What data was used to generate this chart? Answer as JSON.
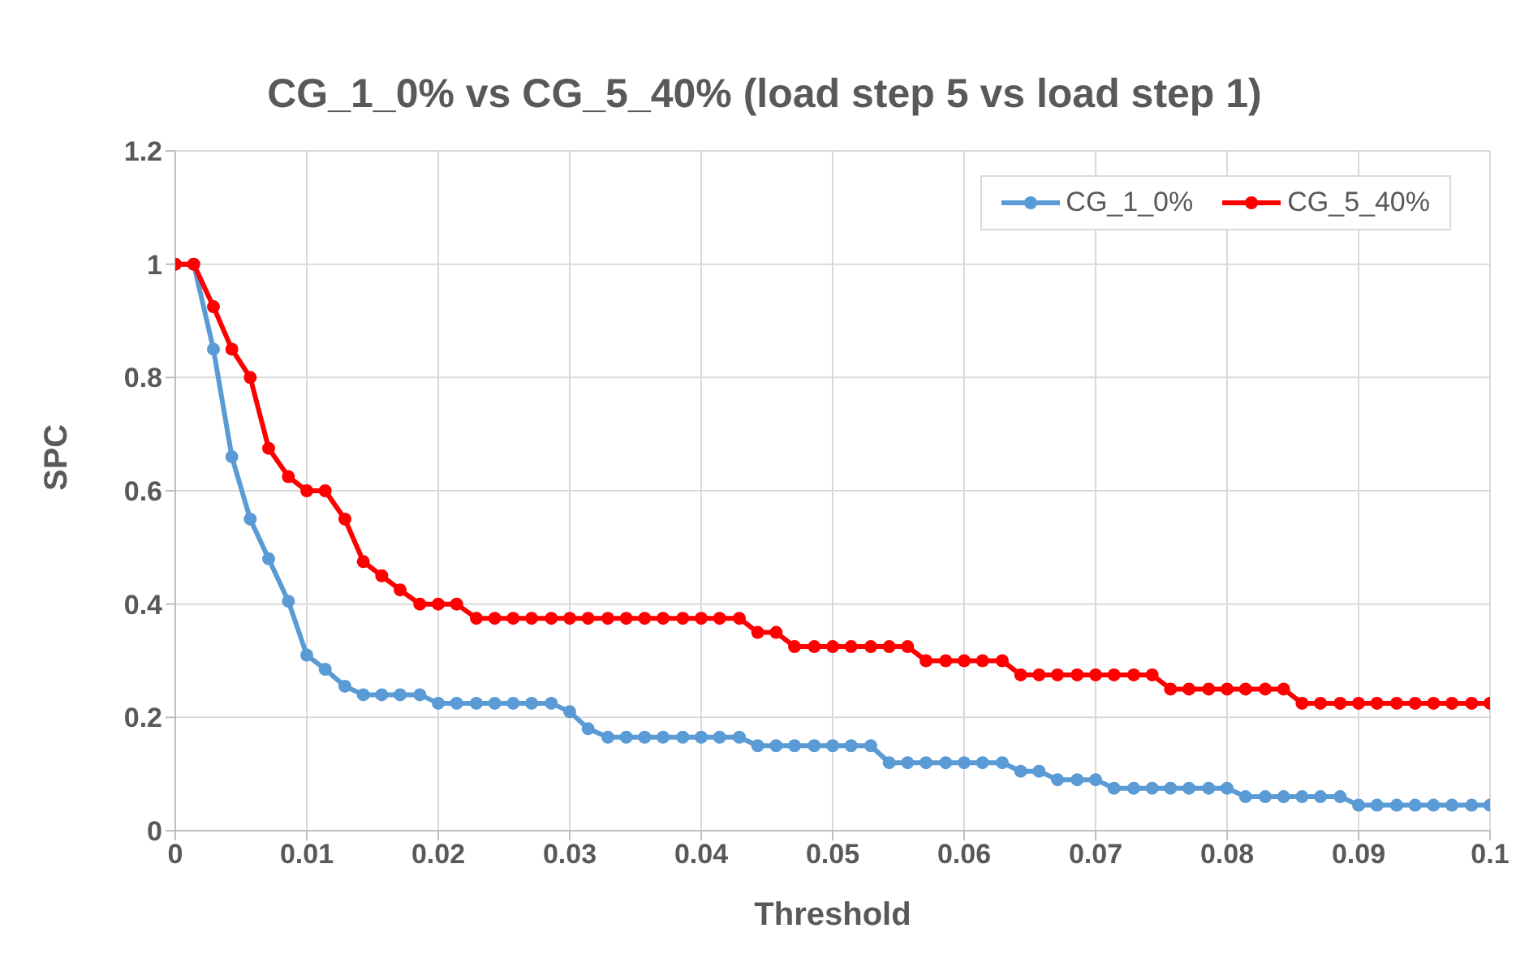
{
  "chart_data": {
    "type": "line",
    "title": "CG_1_0% vs CG_5_40% (load step 5 vs load step 1)",
    "xlabel": "Threshold",
    "ylabel": "SPC",
    "x": [
      0,
      0.0014,
      0.0029,
      0.0043,
      0.0057,
      0.0071,
      0.0086,
      0.01,
      0.0114,
      0.0129,
      0.0143,
      0.0157,
      0.0171,
      0.0186,
      0.02,
      0.0214,
      0.0229,
      0.0243,
      0.0257,
      0.0271,
      0.0286,
      0.03,
      0.0314,
      0.0329,
      0.0343,
      0.0357,
      0.0371,
      0.0386,
      0.04,
      0.0414,
      0.0429,
      0.0443,
      0.0457,
      0.0471,
      0.0486,
      0.05,
      0.0514,
      0.0529,
      0.0543,
      0.0557,
      0.0571,
      0.0586,
      0.06,
      0.0614,
      0.0629,
      0.0643,
      0.0657,
      0.0671,
      0.0686,
      0.07,
      0.0714,
      0.0729,
      0.0743,
      0.0757,
      0.0771,
      0.0786,
      0.08,
      0.0814,
      0.0829,
      0.0843,
      0.0857,
      0.0871,
      0.0886,
      0.09,
      0.0914,
      0.0929,
      0.0943,
      0.0957,
      0.0971,
      0.0986,
      0.1
    ],
    "series": [
      {
        "name": "CG_1_0%",
        "color": "#5b9bd5",
        "values": [
          1,
          1,
          0.85,
          0.66,
          0.55,
          0.48,
          0.405,
          0.31,
          0.285,
          0.255,
          0.24,
          0.24,
          0.24,
          0.24,
          0.225,
          0.225,
          0.225,
          0.225,
          0.225,
          0.225,
          0.225,
          0.21,
          0.18,
          0.165,
          0.165,
          0.165,
          0.165,
          0.165,
          0.165,
          0.165,
          0.165,
          0.15,
          0.15,
          0.15,
          0.15,
          0.15,
          0.15,
          0.15,
          0.12,
          0.12,
          0.12,
          0.12,
          0.12,
          0.12,
          0.12,
          0.105,
          0.105,
          0.09,
          0.09,
          0.09,
          0.075,
          0.075,
          0.075,
          0.075,
          0.075,
          0.075,
          0.075,
          0.06,
          0.06,
          0.06,
          0.06,
          0.06,
          0.06,
          0.045,
          0.045,
          0.045,
          0.045,
          0.045,
          0.045,
          0.045,
          0.045
        ]
      },
      {
        "name": "CG_5_40%",
        "color": "#ff0000",
        "values": [
          1,
          1,
          0.925,
          0.85,
          0.8,
          0.675,
          0.625,
          0.6,
          0.6,
          0.55,
          0.475,
          0.45,
          0.425,
          0.4,
          0.4,
          0.4,
          0.375,
          0.375,
          0.375,
          0.375,
          0.375,
          0.375,
          0.375,
          0.375,
          0.375,
          0.375,
          0.375,
          0.375,
          0.375,
          0.375,
          0.375,
          0.35,
          0.35,
          0.325,
          0.325,
          0.325,
          0.325,
          0.325,
          0.325,
          0.325,
          0.3,
          0.3,
          0.3,
          0.3,
          0.3,
          0.275,
          0.275,
          0.275,
          0.275,
          0.275,
          0.275,
          0.275,
          0.275,
          0.25,
          0.25,
          0.25,
          0.25,
          0.25,
          0.25,
          0.25,
          0.225,
          0.225,
          0.225,
          0.225,
          0.225,
          0.225,
          0.225,
          0.225,
          0.225,
          0.225,
          0.225
        ]
      }
    ],
    "xlim": [
      0,
      0.1
    ],
    "xticks": [
      0,
      0.01,
      0.02,
      0.03,
      0.04,
      0.05,
      0.06,
      0.07,
      0.08,
      0.09,
      0.1
    ],
    "ylim": [
      0,
      1.2
    ],
    "yticks": [
      0,
      0.2,
      0.4,
      0.6,
      0.8,
      1,
      1.2
    ],
    "grid": true,
    "legend": "top right",
    "marker": "circle",
    "line_style": "solid"
  }
}
